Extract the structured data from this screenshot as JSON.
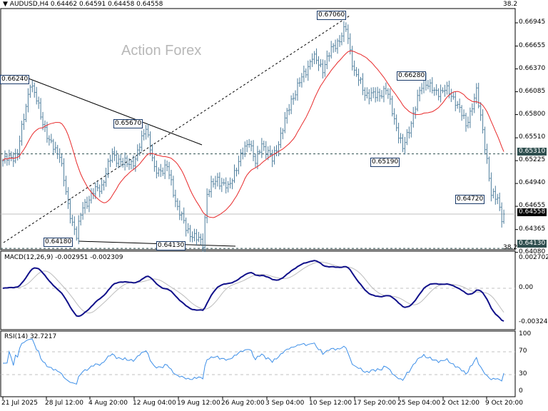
{
  "header": {
    "symbol_line": "AUDUSD,H4  0.64462 0.64591 0.64458 0.64558",
    "fib_label": "38.2"
  },
  "watermark": "Action Forex",
  "colors": {
    "bars": "#4d7d9c",
    "ma": "#e8292a",
    "macd": "#10108a",
    "signal": "#bdbdbd",
    "rsi": "#3d8fe8",
    "level_box": "#2f4f4f",
    "current_box": "#000000"
  },
  "chart_data": [
    {
      "type": "bar",
      "panel": "price",
      "title": "AUDUSD,H4",
      "x_tick_labels": [
        "21 Jul 2025",
        "28 Jul 12:00",
        "4 Aug 20:00",
        "12 Aug 04:00",
        "19 Aug 12:00",
        "26 Aug 20:00",
        "3 Sep 04:00",
        "10 Sep 12:00",
        "17 Sep 20:00",
        "25 Sep 04:00",
        "2 Oct 12:00",
        "9 Oct 20:00"
      ],
      "y_tick_labels": [
        "0.66945",
        "0.66655",
        "0.66370",
        "0.66085",
        "0.65800",
        "0.65510",
        "0.65225",
        "0.64940",
        "0.64655",
        "0.64365",
        "0.64080"
      ],
      "ylim": [
        0.6405,
        0.6712
      ],
      "ohlc_last": {
        "open": 0.64462,
        "high": 0.64591,
        "low": 0.64458,
        "close": 0.64558
      },
      "approx_close_path": [
        [
          1,
          0.65225
        ],
        [
          7,
          0.65314
        ],
        [
          13,
          0.66206
        ],
        [
          17,
          0.65894
        ],
        [
          22,
          0.65448
        ],
        [
          27,
          0.65314
        ],
        [
          31,
          0.64646
        ],
        [
          35,
          0.64289
        ],
        [
          38,
          0.64646
        ],
        [
          43,
          0.64824
        ],
        [
          47,
          0.64914
        ],
        [
          52,
          0.65314
        ],
        [
          57,
          0.65181
        ],
        [
          63,
          0.65225
        ],
        [
          68,
          0.65671
        ],
        [
          72,
          0.65092
        ],
        [
          78,
          0.65136
        ],
        [
          83,
          0.64646
        ],
        [
          87,
          0.64379
        ],
        [
          92,
          0.64245
        ],
        [
          95,
          0.64201
        ],
        [
          97,
          0.64824
        ],
        [
          102,
          0.65003
        ],
        [
          107,
          0.64869
        ],
        [
          110,
          0.65092
        ],
        [
          117,
          0.65493
        ],
        [
          120,
          0.65181
        ],
        [
          123,
          0.65448
        ],
        [
          128,
          0.65225
        ],
        [
          133,
          0.65627
        ],
        [
          137,
          0.65983
        ],
        [
          142,
          0.6625
        ],
        [
          147,
          0.66517
        ],
        [
          152,
          0.66384
        ],
        [
          157,
          0.66651
        ],
        [
          160,
          0.6674
        ],
        [
          163,
          0.66874
        ],
        [
          167,
          0.66339
        ],
        [
          172,
          0.66072
        ],
        [
          177,
          0.66027
        ],
        [
          182,
          0.66116
        ],
        [
          185,
          0.65849
        ],
        [
          190,
          0.65359
        ],
        [
          193,
          0.65627
        ],
        [
          197,
          0.65983
        ],
        [
          200,
          0.6625
        ],
        [
          205,
          0.66072
        ],
        [
          210,
          0.66116
        ],
        [
          215,
          0.65983
        ],
        [
          220,
          0.65671
        ],
        [
          225,
          0.66072
        ],
        [
          228,
          0.65627
        ],
        [
          230,
          0.65225
        ],
        [
          232,
          0.6478
        ],
        [
          235,
          0.6478
        ],
        [
          237,
          0.64513
        ],
        [
          238,
          0.64558
        ]
      ],
      "ma_period": 20,
      "price_labels": [
        "0.67060",
        "0.66240",
        "0.65670",
        "0.64180",
        "0.64130",
        "0.66280",
        "0.65190",
        "0.64720"
      ],
      "horizontal_levels": [
        {
          "value": "0.65310",
          "style": "dashed"
        },
        {
          "value": "0.64130",
          "style": "dashed"
        },
        {
          "value": "0.64558",
          "style": "current"
        }
      ]
    },
    {
      "type": "line",
      "panel": "macd",
      "title": "MACD(12,26,9) -0.002951 -0.002309",
      "y_tick_labels": [
        "0.002702",
        "0.00",
        "-0.003241"
      ],
      "ylim": [
        -0.003241,
        0.002702
      ]
    },
    {
      "type": "line",
      "panel": "rsi",
      "title": "RSI(14) 32.7217",
      "y_tick_labels": [
        "100",
        "70",
        "30",
        "0"
      ],
      "ylim": [
        0,
        100
      ],
      "levels": [
        70,
        30
      ]
    }
  ]
}
